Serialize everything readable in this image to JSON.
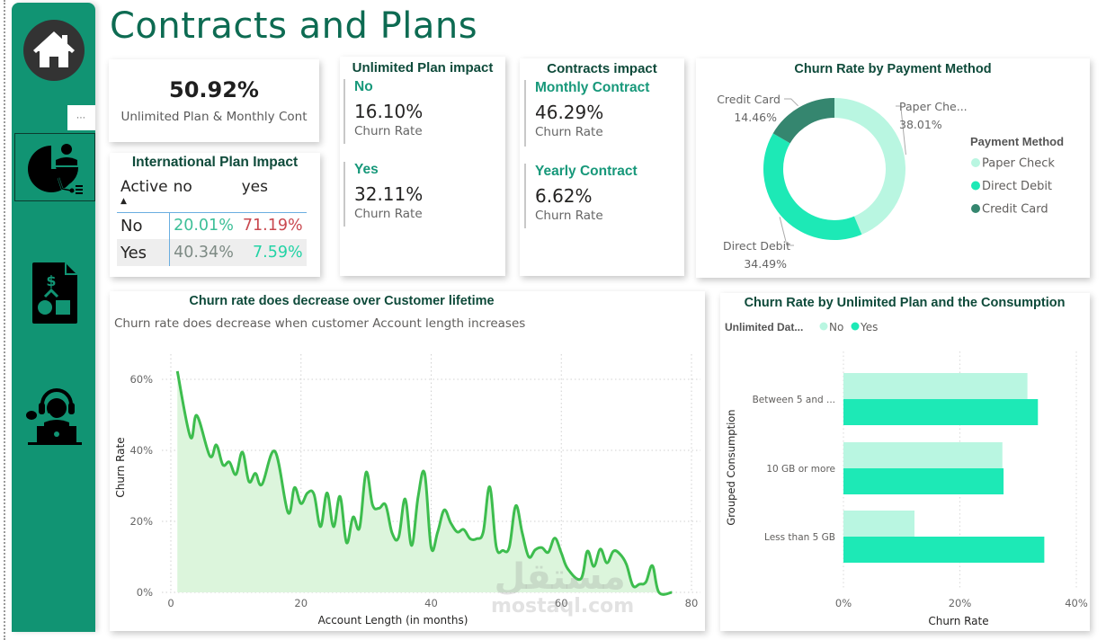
{
  "page": {
    "title": "Contracts and Plans",
    "more_options_label": "⋯"
  },
  "sidebar": {
    "items": [
      {
        "name": "home",
        "icon": "home-icon"
      },
      {
        "name": "customer-analytics",
        "icon": "pie-chart-person-icon",
        "active": true
      },
      {
        "name": "billing-plans",
        "icon": "dollar-document-icon"
      },
      {
        "name": "customer-service",
        "icon": "support-agent-icon"
      }
    ]
  },
  "kpi_card": {
    "value": "50.92%",
    "label": "Unlimited Plan & Monthly Cont"
  },
  "intl_plan": {
    "title": "International Plan Impact",
    "row_header": "Active",
    "sort_indicator": "▲",
    "columns": [
      "no",
      "yes"
    ],
    "rows": [
      {
        "label": "No",
        "values": [
          "20.01%",
          "71.19%"
        ],
        "colors": [
          "#3dbf98",
          "#c9484f"
        ]
      },
      {
        "label": "Yes",
        "values": [
          "40.34%",
          "7.59%"
        ],
        "colors": [
          "#7d8a84",
          "#22d3a5"
        ]
      }
    ]
  },
  "unlimited_plan": {
    "title": "Unlimited Plan impact",
    "items": [
      {
        "label": "No",
        "value": "16.10%",
        "sub": "Churn Rate"
      },
      {
        "label": "Yes",
        "value": "32.11%",
        "sub": "Churn Rate"
      }
    ]
  },
  "contracts": {
    "title": "Contracts impact",
    "items": [
      {
        "label": "Monthly Contract",
        "value": "46.29%",
        "sub": "Churn Rate"
      },
      {
        "label": "Yearly Contract",
        "value": "6.62%",
        "sub": "Churn Rate"
      }
    ]
  },
  "watermark": {
    "arabic": "مستقل",
    "latin": "mostaql.com"
  },
  "chart_data": [
    {
      "type": "pie",
      "title": "Churn Rate by Payment Method",
      "legend_title": "Payment Method",
      "legend_position": "right",
      "slices": [
        {
          "label": "Paper Check",
          "data_label": "Paper Che...",
          "value": 38.01,
          "display": "38.01%",
          "color": "#b9f6e1"
        },
        {
          "label": "Direct Debit",
          "data_label": "Direct Debit",
          "value": 34.49,
          "display": "34.49%",
          "color": "#1de9b6"
        },
        {
          "label": "Credit Card",
          "data_label": "Credit Card",
          "value": 14.46,
          "display": "14.46%",
          "color": "#35866f"
        }
      ]
    },
    {
      "type": "area",
      "title": "Churn rate does decrease over Customer lifetime",
      "subtitle": "Churn rate does decrease when customer Account length increases",
      "xlabel": "Account Length (in months)",
      "ylabel": "Churn Rate",
      "xlim": [
        0,
        80
      ],
      "ylim": [
        0,
        70
      ],
      "xticks": [
        0,
        20,
        40,
        60,
        80
      ],
      "yticks": [
        0,
        20,
        40,
        60
      ],
      "ytick_labels": [
        "0%",
        "20%",
        "40%",
        "60%"
      ],
      "grid": true,
      "color": "#3dbd4e",
      "fill": "#dcf5dc",
      "x": [
        1,
        3,
        4,
        6,
        7,
        8,
        9,
        10,
        11,
        12,
        13,
        14,
        16,
        18,
        19,
        20,
        21,
        22,
        23,
        24,
        25,
        26,
        27,
        28,
        29,
        30,
        31,
        32,
        33,
        34,
        35,
        36,
        37,
        38,
        39,
        40,
        41,
        42,
        43,
        44,
        45,
        46,
        47,
        48,
        49,
        50,
        51,
        52,
        53,
        54,
        55,
        56,
        57,
        58,
        59,
        60,
        61,
        63,
        64,
        65,
        66,
        67,
        68,
        69,
        70,
        71,
        72,
        73,
        74,
        75,
        77
      ],
      "y": [
        62.3,
        43.8,
        49.8,
        38.4,
        41.5,
        35.9,
        36.7,
        33.2,
        39.5,
        31.2,
        33.5,
        30.4,
        39.7,
        22.5,
        29.5,
        25.0,
        28.0,
        27.6,
        18.5,
        28.0,
        18.5,
        27.0,
        14.0,
        21.2,
        18.2,
        33.8,
        24.6,
        23.7,
        24.6,
        16.7,
        15.5,
        26.3,
        13.2,
        27.0,
        33.5,
        12.6,
        17.0,
        23.2,
        19.6,
        17.0,
        17.7,
        15.1,
        15.1,
        17.0,
        29.7,
        12.9,
        11.8,
        12.7,
        24.4,
        16.7,
        10.0,
        12.0,
        12.6,
        11.3,
        15.3,
        11.1,
        6.6,
        3.8,
        11.6,
        7.3,
        12.2,
        8.3,
        11.6,
        10.8,
        7.9,
        1.9,
        2.3,
        2.9,
        7.5,
        0.0,
        0.0
      ]
    },
    {
      "type": "bar",
      "orientation": "horizontal",
      "title": "Churn Rate by Unlimited Plan and the Consumption",
      "legend_title": "Unlimited Dat...",
      "legend_position": "top-left",
      "xlabel": "Churn Rate",
      "ylabel": "Grouped Consumption",
      "xlim": [
        0,
        40
      ],
      "xticks": [
        0,
        20,
        40
      ],
      "xtick_labels": [
        "0%",
        "20%",
        "40%"
      ],
      "grid": true,
      "categories": [
        "Between 5 and ...",
        "10 GB or more",
        "Less than 5 GB"
      ],
      "series": [
        {
          "name": "No",
          "color": "#b9f6e1",
          "values": [
            31.6,
            27.3,
            12.2
          ]
        },
        {
          "name": "Yes",
          "color": "#1de9b6",
          "values": [
            33.4,
            27.5,
            34.5
          ]
        }
      ]
    }
  ]
}
